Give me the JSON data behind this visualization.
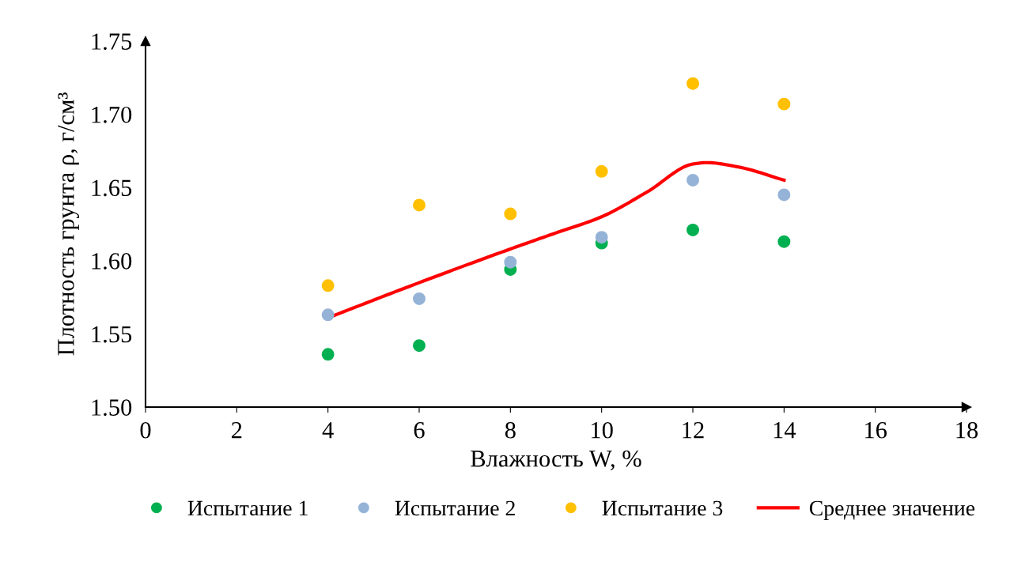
{
  "chart_data": {
    "type": "scatter",
    "xlabel": "Влажность W, %",
    "ylabel": "Плотность грунта ρ, г/см³",
    "xlim": [
      0,
      18
    ],
    "xticks": [
      0,
      2,
      4,
      6,
      8,
      10,
      12,
      14,
      16,
      18
    ],
    "ylim": [
      1.5,
      1.75
    ],
    "yticks": [
      {
        "value": 1.5,
        "label": "1.50"
      },
      {
        "value": 1.55,
        "label": "1.55"
      },
      {
        "value": 1.6,
        "label": "1.60"
      },
      {
        "value": 1.65,
        "label": "1.65"
      },
      {
        "value": 1.7,
        "label": "1.70"
      },
      {
        "value": 1.75,
        "label": "1.75"
      }
    ],
    "x": [
      4,
      6,
      8,
      10,
      12,
      14
    ],
    "marker": "circle",
    "grid": false,
    "legend": "bottom",
    "series": [
      {
        "name": "Испытание 1",
        "color": "#00b050",
        "values": [
          1.536,
          1.542,
          1.594,
          1.612,
          1.621,
          1.613
        ]
      },
      {
        "name": "Испытание 2",
        "color": "#95b3d7",
        "values": [
          1.563,
          1.574,
          1.599,
          1.616,
          1.655,
          1.645
        ]
      },
      {
        "name": "Испытание 3",
        "color": "#ffc000",
        "values": [
          1.583,
          1.638,
          1.632,
          1.661,
          1.721,
          1.707
        ]
      },
      {
        "name": "Среднее значение",
        "type": "line",
        "color": "#ff0000",
        "line_style": "solid",
        "marker": "none",
        "x": [
          4,
          6,
          8,
          9,
          10,
          11,
          12,
          12.3,
          13,
          14
        ],
        "values": [
          1.561,
          1.585,
          1.608,
          1.619,
          1.63,
          1.647,
          1.666,
          1.667,
          1.664,
          1.655
        ]
      }
    ]
  }
}
